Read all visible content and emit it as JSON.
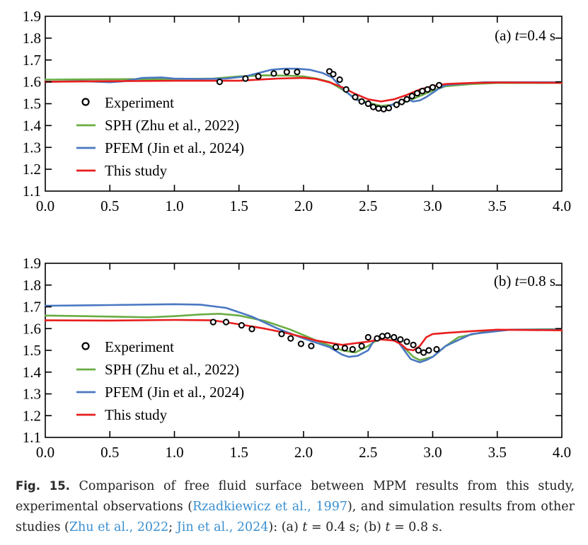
{
  "chart_data": [
    {
      "type": "line",
      "panel_label": "(a) ",
      "panel_var": "t",
      "panel_time": "=0.4 s",
      "xlim": [
        0,
        4
      ],
      "ylim": [
        1.1,
        1.9
      ],
      "x_ticks": [
        "0.0",
        "0.5",
        "1.0",
        "1.5",
        "2.0",
        "2.5",
        "3.0",
        "3.5",
        "4.0"
      ],
      "y_ticks": [
        "1.1",
        "1.2",
        "1.3",
        "1.4",
        "1.5",
        "1.6",
        "1.7",
        "1.8",
        "1.9"
      ],
      "series": [
        {
          "name": "SPH (Zhu et al., 2022)",
          "style": "line",
          "color": "#6aac44",
          "x": [
            0,
            0.5,
            1.0,
            1.3,
            1.5,
            1.7,
            1.9,
            2.0,
            2.1,
            2.2,
            2.3,
            2.4,
            2.5,
            2.6,
            2.7,
            2.8,
            2.9,
            3.0,
            3.1,
            3.3,
            3.5,
            4.0
          ],
          "y": [
            1.61,
            1.612,
            1.613,
            1.615,
            1.625,
            1.63,
            1.628,
            1.625,
            1.615,
            1.6,
            1.565,
            1.525,
            1.505,
            1.49,
            1.495,
            1.51,
            1.535,
            1.56,
            1.58,
            1.59,
            1.595,
            1.595
          ]
        },
        {
          "name": "PFEM (Jin et al., 2024)",
          "style": "line",
          "color": "#4a78c2",
          "x": [
            0,
            0.3,
            0.5,
            0.6,
            0.75,
            0.9,
            1.0,
            1.2,
            1.4,
            1.55,
            1.65,
            1.75,
            1.85,
            1.95,
            2.05,
            2.15,
            2.22,
            2.3,
            2.4,
            2.5,
            2.58,
            2.65,
            2.7,
            2.75,
            2.8,
            2.85,
            2.9,
            2.95,
            3.0,
            3.05,
            3.1,
            3.2,
            3.4,
            4.0
          ],
          "y": [
            1.6,
            1.603,
            1.598,
            1.602,
            1.618,
            1.62,
            1.615,
            1.613,
            1.615,
            1.625,
            1.64,
            1.655,
            1.66,
            1.66,
            1.655,
            1.64,
            1.62,
            1.57,
            1.52,
            1.5,
            1.485,
            1.485,
            1.5,
            1.51,
            1.52,
            1.51,
            1.515,
            1.53,
            1.55,
            1.57,
            1.585,
            1.59,
            1.598,
            1.598
          ]
        },
        {
          "name": "This study",
          "style": "line",
          "color": "#e81e1e",
          "x": [
            0,
            0.5,
            1.0,
            1.5,
            1.8,
            2.0,
            2.1,
            2.2,
            2.3,
            2.4,
            2.5,
            2.6,
            2.7,
            2.8,
            2.9,
            3.0,
            3.1,
            3.3,
            3.5,
            4.0
          ],
          "y": [
            1.6,
            1.603,
            1.605,
            1.605,
            1.615,
            1.618,
            1.613,
            1.598,
            1.575,
            1.545,
            1.52,
            1.51,
            1.52,
            1.54,
            1.565,
            1.58,
            1.59,
            1.595,
            1.597,
            1.596
          ]
        },
        {
          "name": "Experiment",
          "style": "markers",
          "color": "#000000",
          "x": [
            1.35,
            1.55,
            1.65,
            1.77,
            1.87,
            1.95,
            2.2,
            2.23,
            2.28,
            2.33,
            2.4,
            2.45,
            2.5,
            2.54,
            2.58,
            2.62,
            2.66,
            2.72,
            2.76,
            2.8,
            2.84,
            2.88,
            2.92,
            2.96,
            3.0,
            3.05
          ],
          "y": [
            1.6,
            1.615,
            1.625,
            1.638,
            1.645,
            1.645,
            1.648,
            1.635,
            1.61,
            1.565,
            1.53,
            1.51,
            1.5,
            1.485,
            1.478,
            1.475,
            1.48,
            1.495,
            1.508,
            1.52,
            1.535,
            1.548,
            1.558,
            1.565,
            1.575,
            1.585
          ]
        }
      ]
    },
    {
      "type": "line",
      "panel_label": "(b) ",
      "panel_var": "t",
      "panel_time": "=0.8 s",
      "xlim": [
        0,
        4
      ],
      "ylim": [
        1.1,
        1.9
      ],
      "x_ticks": [
        "0.0",
        "0.5",
        "1.0",
        "1.5",
        "2.0",
        "2.5",
        "3.0",
        "3.5",
        "4.0"
      ],
      "y_ticks": [
        "1.1",
        "1.2",
        "1.3",
        "1.4",
        "1.5",
        "1.6",
        "1.7",
        "1.8",
        "1.9"
      ],
      "series": [
        {
          "name": "SPH (Zhu et al., 2022)",
          "style": "line",
          "color": "#6aac44",
          "x": [
            0,
            0.5,
            0.8,
            1.0,
            1.2,
            1.35,
            1.5,
            1.7,
            1.9,
            2.1,
            2.3,
            2.4,
            2.5,
            2.6,
            2.65,
            2.7,
            2.8,
            2.85,
            2.9,
            3.0,
            3.1,
            3.2,
            3.4,
            3.6,
            4.0
          ],
          "y": [
            1.66,
            1.655,
            1.652,
            1.657,
            1.665,
            1.668,
            1.66,
            1.635,
            1.595,
            1.545,
            1.5,
            1.49,
            1.52,
            1.56,
            1.565,
            1.555,
            1.5,
            1.47,
            1.455,
            1.47,
            1.52,
            1.56,
            1.585,
            1.595,
            1.598
          ]
        },
        {
          "name": "PFEM (Jin et al., 2024)",
          "style": "line",
          "color": "#4a78c2",
          "x": [
            0,
            0.5,
            1.0,
            1.2,
            1.4,
            1.6,
            1.8,
            2.0,
            2.2,
            2.3,
            2.35,
            2.42,
            2.5,
            2.55,
            2.65,
            2.72,
            2.78,
            2.83,
            2.9,
            2.95,
            3.0,
            3.1,
            3.3,
            3.6,
            4.0
          ],
          "y": [
            1.705,
            1.708,
            1.712,
            1.71,
            1.695,
            1.655,
            1.6,
            1.555,
            1.515,
            1.48,
            1.47,
            1.475,
            1.5,
            1.55,
            1.57,
            1.55,
            1.5,
            1.46,
            1.445,
            1.455,
            1.47,
            1.52,
            1.575,
            1.595,
            1.595
          ]
        },
        {
          "name": "This study",
          "style": "line",
          "color": "#e81e1e",
          "x": [
            0,
            0.5,
            1.0,
            1.3,
            1.5,
            1.7,
            1.9,
            2.1,
            2.3,
            2.5,
            2.6,
            2.7,
            2.75,
            2.8,
            2.85,
            2.9,
            2.95,
            3.0,
            3.1,
            3.3,
            3.5,
            4.0
          ],
          "y": [
            1.638,
            1.637,
            1.64,
            1.638,
            1.62,
            1.6,
            1.575,
            1.545,
            1.525,
            1.54,
            1.55,
            1.545,
            1.53,
            1.505,
            1.5,
            1.52,
            1.56,
            1.575,
            1.58,
            1.588,
            1.595,
            1.592
          ]
        },
        {
          "name": "Experiment",
          "style": "markers",
          "color": "#000000",
          "x": [
            1.3,
            1.4,
            1.52,
            1.6,
            1.83,
            1.9,
            1.98,
            2.06,
            2.25,
            2.32,
            2.38,
            2.45,
            2.5,
            2.57,
            2.61,
            2.65,
            2.7,
            2.75,
            2.8,
            2.85,
            2.89,
            2.93,
            2.97,
            3.03
          ],
          "y": [
            1.63,
            1.63,
            1.615,
            1.598,
            1.575,
            1.555,
            1.53,
            1.52,
            1.515,
            1.51,
            1.505,
            1.52,
            1.56,
            1.555,
            1.565,
            1.568,
            1.56,
            1.55,
            1.54,
            1.525,
            1.5,
            1.49,
            1.5,
            1.505
          ]
        }
      ]
    }
  ],
  "caption": {
    "fig_label": "Fig. 15.",
    "part1": " Comparison of free fluid surface between MPM results from this study, experimental observations (",
    "cite1": "Rzadkiewicz et al., 1997",
    "part2": "), and simulation results from other studies (",
    "cite2": "Zhu et al., 2022",
    "part3": "; ",
    "cite3": "Jin et al., 2024",
    "part4": "): (a) ",
    "var_a": "t",
    "part5": " = 0.4 s; (b) ",
    "var_b": "t",
    "part6": " = 0.8 s."
  }
}
